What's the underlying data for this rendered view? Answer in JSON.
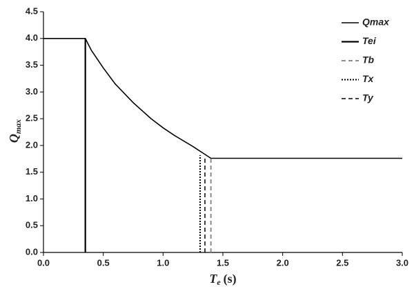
{
  "chart_data": {
    "type": "line",
    "ylabel": "Q",
    "ylabel_sub": "max",
    "xlabel": "T",
    "xlabel_sub": "e",
    "xlabel_unit": "(s)",
    "xlim": [
      0,
      3.0
    ],
    "xticks": [
      {
        "value": 0,
        "label": "0.0"
      },
      {
        "value": 0.5,
        "label": "0.5"
      },
      {
        "value": 1,
        "label": "1.0"
      },
      {
        "value": 1.5,
        "label": "1.5"
      },
      {
        "value": 2,
        "label": "2.0"
      },
      {
        "value": 2.5,
        "label": "2.5"
      },
      {
        "value": 3,
        "label": "3.0"
      }
    ],
    "ylim": [
      0,
      4.5
    ],
    "yticks": [
      {
        "value": 0,
        "label": "0.0"
      },
      {
        "value": 0.5,
        "label": "0.5"
      },
      {
        "value": 1,
        "label": "1.0"
      },
      {
        "value": 1.5,
        "label": "1.5"
      },
      {
        "value": 2,
        "label": "2.0"
      },
      {
        "value": 2.5,
        "label": "2.5"
      },
      {
        "value": 3,
        "label": "3.0"
      },
      {
        "value": 3.5,
        "label": "3.5"
      },
      {
        "value": 4,
        "label": "4.0"
      },
      {
        "value": 4.5,
        "label": "4.5"
      }
    ],
    "legend": "top-right",
    "series": [
      {
        "name": "Qmax",
        "color": "#000000",
        "dash": "solid",
        "width": 1.6,
        "x": [
          0,
          0.35,
          0.4,
          0.5,
          0.6,
          0.75,
          0.9,
          1.0,
          1.1,
          1.25,
          1.4,
          3.0
        ],
        "values": [
          4.0,
          4.0,
          3.78,
          3.45,
          3.15,
          2.8,
          2.5,
          2.33,
          2.18,
          1.98,
          1.76,
          1.76
        ]
      },
      {
        "name": "Tei",
        "color": "#000000",
        "dash": "solid",
        "width": 2.2,
        "x": [
          0.35,
          0.35
        ],
        "values": [
          0,
          4.0
        ]
      },
      {
        "name": "Tb",
        "color": "#8c8c8c",
        "dash": "dashed",
        "width": 2,
        "x": [
          1.4,
          1.4
        ],
        "values": [
          0,
          1.76
        ]
      },
      {
        "name": "Tx",
        "color": "#000000",
        "dash": "dotted",
        "width": 2,
        "x": [
          1.31,
          1.31
        ],
        "values": [
          0,
          1.82
        ]
      },
      {
        "name": "Ty",
        "color": "#000000",
        "dash": "dashed",
        "width": 1.5,
        "x": [
          1.35,
          1.35
        ],
        "values": [
          0,
          1.79
        ]
      }
    ]
  }
}
